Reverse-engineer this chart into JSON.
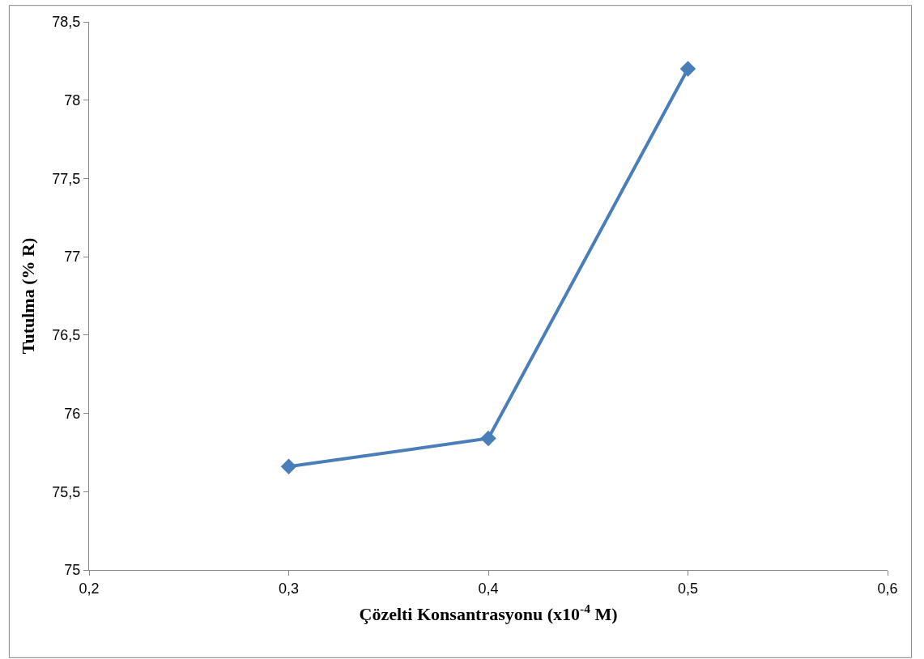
{
  "chart_data": {
    "type": "line",
    "xlabel": "Çözelti Konsantrasyonu (x10$^{-4}$ M)",
    "ylabel": "Tutulma (% R)",
    "x": [
      0.3,
      0.4,
      0.5
    ],
    "series": [
      {
        "color": "#4a7ebb",
        "values": [
          75.66,
          75.84,
          78.2
        ]
      }
    ],
    "xlim": [
      0.2,
      0.6
    ],
    "ylim": [
      75,
      78.5
    ],
    "xticks": [
      {
        "value": 0.2,
        "label": "0,2"
      },
      {
        "value": 0.3,
        "label": "0,3"
      },
      {
        "value": 0.4,
        "label": "0,4"
      },
      {
        "value": 0.5,
        "label": "0,5"
      },
      {
        "value": 0.6,
        "label": "0,6"
      }
    ],
    "yticks": [
      {
        "value": 75,
        "label": "75"
      },
      {
        "value": 75.5,
        "label": "75,5"
      },
      {
        "value": 76,
        "label": "76"
      },
      {
        "value": 76.5,
        "label": "76,5"
      },
      {
        "value": 77,
        "label": "77"
      },
      {
        "value": 77.5,
        "label": "77,5"
      },
      {
        "value": 78,
        "label": "78"
      },
      {
        "value": 78.5,
        "label": "78,5"
      }
    ],
    "marker": "diamond",
    "line_style": "solid"
  }
}
